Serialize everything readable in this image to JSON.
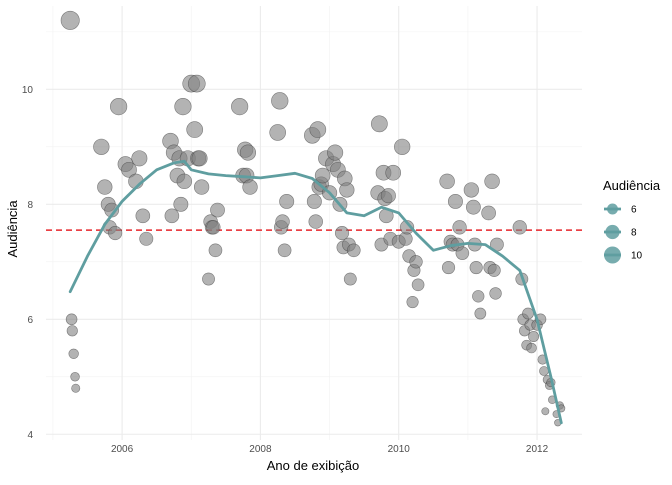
{
  "chart_data": {
    "type": "scatter",
    "xlabel": "Ano de exibição",
    "ylabel": "Audiência",
    "xlim": [
      2004.9,
      2012.65
    ],
    "ylim": [
      3.9,
      11.45
    ],
    "x_ticks": [
      2006,
      2008,
      2010,
      2012
    ],
    "y_ticks": [
      4,
      6,
      8,
      10
    ],
    "grid": true,
    "legend": {
      "title": "Audiência",
      "position": "right",
      "entries": [
        "6",
        "8",
        "10"
      ]
    },
    "reference_line": {
      "y": 7.55,
      "color": "#e8262b",
      "style": "dashed"
    },
    "smooth_color": "#5f9ea0",
    "point_color": "#808080",
    "smooth": [
      [
        2005.25,
        6.48
      ],
      [
        2005.5,
        7.1
      ],
      [
        2005.75,
        7.65
      ],
      [
        2006.0,
        8.05
      ],
      [
        2006.25,
        8.35
      ],
      [
        2006.5,
        8.6
      ],
      [
        2006.75,
        8.72
      ],
      [
        2006.9,
        8.75
      ],
      [
        2007.0,
        8.6
      ],
      [
        2007.25,
        8.53
      ],
      [
        2007.5,
        8.5
      ],
      [
        2007.75,
        8.48
      ],
      [
        2008.0,
        8.46
      ],
      [
        2008.25,
        8.5
      ],
      [
        2008.5,
        8.54
      ],
      [
        2008.75,
        8.45
      ],
      [
        2009.0,
        8.2
      ],
      [
        2009.25,
        7.85
      ],
      [
        2009.5,
        7.8
      ],
      [
        2009.75,
        7.95
      ],
      [
        2010.0,
        7.85
      ],
      [
        2010.25,
        7.5
      ],
      [
        2010.5,
        7.2
      ],
      [
        2010.75,
        7.28
      ],
      [
        2011.0,
        7.32
      ],
      [
        2011.25,
        7.3
      ],
      [
        2011.5,
        7.1
      ],
      [
        2011.75,
        6.85
      ],
      [
        2012.0,
        6.0
      ],
      [
        2012.2,
        5.0
      ],
      [
        2012.35,
        4.2
      ]
    ],
    "points": [
      [
        2005.25,
        11.2
      ],
      [
        2005.27,
        6.0
      ],
      [
        2005.28,
        5.8
      ],
      [
        2005.3,
        5.4
      ],
      [
        2005.32,
        5.0
      ],
      [
        2005.33,
        4.8
      ],
      [
        2005.7,
        9.0
      ],
      [
        2005.75,
        8.3
      ],
      [
        2005.8,
        8.0
      ],
      [
        2005.82,
        7.6
      ],
      [
        2005.85,
        7.9
      ],
      [
        2005.9,
        7.5
      ],
      [
        2005.95,
        9.7
      ],
      [
        2006.05,
        8.7
      ],
      [
        2006.1,
        8.6
      ],
      [
        2006.2,
        8.4
      ],
      [
        2006.25,
        8.8
      ],
      [
        2006.3,
        7.8
      ],
      [
        2006.35,
        7.4
      ],
      [
        2006.7,
        9.1
      ],
      [
        2006.72,
        7.8
      ],
      [
        2006.75,
        8.9
      ],
      [
        2006.8,
        8.5
      ],
      [
        2006.83,
        8.8
      ],
      [
        2006.85,
        8.0
      ],
      [
        2006.88,
        9.7
      ],
      [
        2006.9,
        8.4
      ],
      [
        2006.95,
        8.8
      ],
      [
        2007.0,
        10.1
      ],
      [
        2007.05,
        9.3
      ],
      [
        2007.08,
        10.1
      ],
      [
        2007.1,
        8.8
      ],
      [
        2007.12,
        8.8
      ],
      [
        2007.15,
        8.3
      ],
      [
        2007.25,
        6.7
      ],
      [
        2007.28,
        7.7
      ],
      [
        2007.3,
        7.6
      ],
      [
        2007.32,
        7.6
      ],
      [
        2007.35,
        7.2
      ],
      [
        2007.38,
        7.9
      ],
      [
        2007.7,
        9.7
      ],
      [
        2007.75,
        8.5
      ],
      [
        2007.78,
        8.95
      ],
      [
        2007.8,
        8.5
      ],
      [
        2007.82,
        8.9
      ],
      [
        2007.85,
        8.3
      ],
      [
        2008.25,
        9.25
      ],
      [
        2008.28,
        9.8
      ],
      [
        2008.3,
        7.6
      ],
      [
        2008.32,
        7.7
      ],
      [
        2008.35,
        7.2
      ],
      [
        2008.38,
        8.05
      ],
      [
        2008.75,
        9.2
      ],
      [
        2008.78,
        8.05
      ],
      [
        2008.8,
        7.7
      ],
      [
        2008.83,
        9.3
      ],
      [
        2008.85,
        8.3
      ],
      [
        2008.88,
        8.35
      ],
      [
        2008.9,
        8.5
      ],
      [
        2008.95,
        8.8
      ],
      [
        2009.0,
        8.2
      ],
      [
        2009.05,
        8.7
      ],
      [
        2009.08,
        8.9
      ],
      [
        2009.12,
        8.6
      ],
      [
        2009.15,
        8.0
      ],
      [
        2009.18,
        7.5
      ],
      [
        2009.2,
        7.25
      ],
      [
        2009.22,
        8.45
      ],
      [
        2009.25,
        8.25
      ],
      [
        2009.28,
        7.3
      ],
      [
        2009.3,
        6.7
      ],
      [
        2009.35,
        7.2
      ],
      [
        2009.7,
        8.2
      ],
      [
        2009.72,
        9.4
      ],
      [
        2009.75,
        7.3
      ],
      [
        2009.78,
        8.55
      ],
      [
        2009.8,
        8.1
      ],
      [
        2009.82,
        7.8
      ],
      [
        2009.85,
        8.15
      ],
      [
        2009.88,
        7.4
      ],
      [
        2009.92,
        8.55
      ],
      [
        2010.0,
        7.35
      ],
      [
        2010.05,
        9.0
      ],
      [
        2010.1,
        7.4
      ],
      [
        2010.12,
        7.6
      ],
      [
        2010.15,
        7.1
      ],
      [
        2010.2,
        6.3
      ],
      [
        2010.22,
        6.85
      ],
      [
        2010.25,
        7.0
      ],
      [
        2010.28,
        6.6
      ],
      [
        2010.7,
        8.4
      ],
      [
        2010.72,
        6.9
      ],
      [
        2010.75,
        7.35
      ],
      [
        2010.78,
        7.3
      ],
      [
        2010.82,
        8.05
      ],
      [
        2010.85,
        7.3
      ],
      [
        2010.88,
        7.6
      ],
      [
        2010.92,
        7.15
      ],
      [
        2011.05,
        8.25
      ],
      [
        2011.08,
        7.95
      ],
      [
        2011.1,
        7.3
      ],
      [
        2011.12,
        6.9
      ],
      [
        2011.15,
        6.4
      ],
      [
        2011.18,
        6.1
      ],
      [
        2011.3,
        7.85
      ],
      [
        2011.32,
        6.9
      ],
      [
        2011.35,
        8.4
      ],
      [
        2011.38,
        6.85
      ],
      [
        2011.4,
        6.45
      ],
      [
        2011.42,
        7.3
      ],
      [
        2011.75,
        7.6
      ],
      [
        2011.78,
        6.7
      ],
      [
        2011.8,
        6.0
      ],
      [
        2011.82,
        5.8
      ],
      [
        2011.85,
        5.55
      ],
      [
        2011.87,
        6.1
      ],
      [
        2011.9,
        5.9
      ],
      [
        2011.92,
        5.5
      ],
      [
        2011.95,
        5.7
      ],
      [
        2012.0,
        5.9
      ],
      [
        2012.05,
        6.0
      ],
      [
        2012.08,
        5.3
      ],
      [
        2012.1,
        5.1
      ],
      [
        2012.12,
        4.4
      ],
      [
        2012.15,
        4.95
      ],
      [
        2012.18,
        4.85
      ],
      [
        2012.2,
        4.9
      ],
      [
        2012.22,
        4.6
      ],
      [
        2012.28,
        4.35
      ],
      [
        2012.3,
        4.2
      ],
      [
        2012.33,
        4.5
      ],
      [
        2012.35,
        4.45
      ]
    ]
  }
}
